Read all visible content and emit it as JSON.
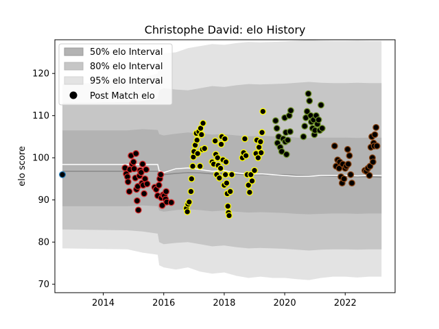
{
  "chart_data": {
    "type": "scatter",
    "title": "Christophe David: elo History",
    "xlabel": "",
    "ylabel": "elo score",
    "xlim": [
      2012.4,
      2023.65
    ],
    "ylim": [
      68,
      128
    ],
    "xticks": [
      2014,
      2016,
      2018,
      2020,
      2022
    ],
    "yticks": [
      70,
      80,
      90,
      100,
      110,
      120
    ],
    "legend": {
      "position": "top-left",
      "entries": [
        {
          "label": "50% elo Interval",
          "swatch": "#b3b3b3"
        },
        {
          "label": "80% elo Interval",
          "swatch": "#c4c4c4"
        },
        {
          "label": "95% elo Interval",
          "swatch": "#e2e2e2"
        },
        {
          "label": "Post Match elo",
          "swatch": "#000000"
        }
      ]
    },
    "colors": {
      "band95": "#e3e3e3",
      "band80": "#c6c6c6",
      "band50": "#b3b3b3",
      "median_line": "#888888",
      "mean_line": "#ffffff",
      "point_fill": "#000000"
    },
    "interval_bands": {
      "x": [
        2012.65,
        2014.8,
        2015.3,
        2015.8,
        2015.85,
        2016.0,
        2016.4,
        2016.8,
        2017.2,
        2017.6,
        2018.0,
        2018.4,
        2018.8,
        2019.2,
        2019.6,
        2020.0,
        2020.4,
        2020.8,
        2021.2,
        2021.6,
        2022.0,
        2022.4,
        2022.8,
        2023.2
      ],
      "median": [
        96.8,
        96.8,
        96.8,
        96.8,
        96.2,
        96.0,
        96.3,
        96.5,
        96.4,
        96.2,
        96.3,
        96.1,
        96.0,
        96.0,
        96.0,
        96.0,
        95.8,
        95.7,
        95.7,
        95.6,
        95.6,
        95.5,
        95.5,
        95.4
      ],
      "mean": [
        98.4,
        98.4,
        98.4,
        98.4,
        96.9,
        96.5,
        97.4,
        97.6,
        97.2,
        96.8,
        97.0,
        96.4,
        96.1,
        96.2,
        96.0,
        95.8,
        95.6,
        95.6,
        95.8,
        95.8,
        95.8,
        95.7,
        95.8,
        95.8
      ],
      "q25": [
        88.5,
        88.5,
        88.7,
        88.5,
        87.5,
        87.2,
        87.6,
        87.8,
        87.6,
        87.3,
        87.5,
        87.2,
        87.0,
        87.1,
        87.0,
        86.9,
        86.7,
        86.6,
        86.7,
        86.8,
        86.8,
        86.7,
        86.8,
        86.8
      ],
      "q75": [
        106.5,
        106.5,
        106.8,
        106.6,
        105.6,
        105.3,
        105.7,
        106.0,
        105.8,
        105.5,
        105.6,
        105.3,
        105.1,
        105.2,
        105.1,
        105.0,
        104.8,
        104.7,
        104.8,
        104.8,
        104.8,
        104.7,
        104.8,
        104.8
      ],
      "q10": [
        83.0,
        82.8,
        82.5,
        82.0,
        80.0,
        79.5,
        79.8,
        80.0,
        79.5,
        79.0,
        79.2,
        78.8,
        78.5,
        78.6,
        78.5,
        78.4,
        78.2,
        78.0,
        78.2,
        78.3,
        78.3,
        78.2,
        78.3,
        78.3
      ],
      "q90": [
        113.0,
        113.2,
        113.5,
        114.0,
        116.0,
        116.5,
        116.2,
        116.0,
        116.5,
        117.0,
        116.8,
        117.2,
        117.5,
        117.4,
        117.5,
        117.6,
        117.8,
        118.0,
        117.8,
        117.7,
        117.7,
        117.8,
        117.7,
        117.7
      ],
      "q025": [
        78.5,
        78.3,
        77.5,
        77.0,
        74.5,
        74.0,
        73.5,
        74.0,
        73.0,
        72.5,
        72.8,
        72.0,
        71.5,
        71.8,
        71.5,
        71.5,
        71.2,
        71.0,
        71.5,
        71.8,
        71.8,
        71.6,
        71.8,
        71.8
      ],
      "q975": [
        117.5,
        118.0,
        119.0,
        120.0,
        124.5,
        124.8,
        125.0,
        126.0,
        126.5,
        127.0,
        126.8,
        127.2,
        127.5,
        127.4,
        127.5,
        127.6,
        127.8,
        128.0,
        127.8,
        127.7,
        127.7,
        127.8,
        127.7,
        127.7
      ]
    },
    "series": [
      {
        "edge": "#1f77b4",
        "points": [
          [
            2012.65,
            96.0
          ]
        ]
      },
      {
        "edge": "#d62728",
        "points": [
          [
            2014.72,
            97.6
          ],
          [
            2014.76,
            96.2
          ],
          [
            2014.8,
            95.5
          ],
          [
            2014.82,
            94.3
          ],
          [
            2014.86,
            92.0
          ],
          [
            2014.88,
            97.2
          ],
          [
            2014.92,
            100.5
          ],
          [
            2014.96,
            98.5
          ],
          [
            2015.0,
            99.0
          ],
          [
            2015.02,
            97.4
          ],
          [
            2015.06,
            95.2
          ],
          [
            2015.08,
            101.0
          ],
          [
            2015.1,
            92.5
          ],
          [
            2015.12,
            89.8
          ],
          [
            2015.14,
            93.2
          ],
          [
            2015.16,
            87.6
          ],
          [
            2015.2,
            95.7
          ],
          [
            2015.22,
            97.0
          ],
          [
            2015.25,
            96.5
          ],
          [
            2015.28,
            94.0
          ],
          [
            2015.3,
            98.5
          ],
          [
            2015.32,
            93.5
          ],
          [
            2015.35,
            91.5
          ],
          [
            2015.38,
            95.0
          ],
          [
            2015.42,
            97.2
          ],
          [
            2015.45,
            93.8
          ],
          [
            2015.7,
            93.0
          ],
          [
            2015.75,
            92.5
          ],
          [
            2015.8,
            91.0
          ],
          [
            2015.84,
            93.5
          ],
          [
            2015.87,
            95.0
          ],
          [
            2015.9,
            96.0
          ],
          [
            2015.92,
            90.5
          ],
          [
            2015.95,
            88.7
          ],
          [
            2015.98,
            91.2
          ],
          [
            2016.02,
            91.0
          ],
          [
            2016.06,
            90.2
          ],
          [
            2016.08,
            92.0
          ],
          [
            2016.1,
            89.5
          ],
          [
            2016.25,
            89.4
          ]
        ]
      },
      {
        "edge": "#ffff00",
        "points": [
          [
            2016.75,
            88.0
          ],
          [
            2016.78,
            87.2
          ],
          [
            2016.8,
            89.0
          ],
          [
            2016.84,
            89.5
          ],
          [
            2016.9,
            92.0
          ],
          [
            2016.92,
            95.0
          ],
          [
            2016.96,
            98.0
          ],
          [
            2016.98,
            100.2
          ],
          [
            2017.0,
            101.5
          ],
          [
            2017.04,
            103.0
          ],
          [
            2017.08,
            105.8
          ],
          [
            2017.1,
            104.2
          ],
          [
            2017.12,
            101.0
          ],
          [
            2017.16,
            106.2
          ],
          [
            2017.2,
            98.0
          ],
          [
            2017.22,
            107.0
          ],
          [
            2017.25,
            105.5
          ],
          [
            2017.28,
            102.0
          ],
          [
            2017.3,
            108.2
          ],
          [
            2017.35,
            102.2
          ],
          [
            2017.6,
            99.0
          ],
          [
            2017.65,
            98.5
          ],
          [
            2017.7,
            104.0
          ],
          [
            2017.72,
            100.8
          ],
          [
            2017.75,
            96.0
          ],
          [
            2017.78,
            100.0
          ],
          [
            2017.8,
            98.2
          ],
          [
            2017.84,
            95.2
          ],
          [
            2017.88,
            97.5
          ],
          [
            2017.9,
            103.2
          ],
          [
            2017.92,
            105.0
          ],
          [
            2017.96,
            99.5
          ],
          [
            2018.0,
            93.5
          ],
          [
            2018.02,
            104.5
          ],
          [
            2018.04,
            96.0
          ],
          [
            2018.06,
            99.0
          ],
          [
            2018.08,
            94.0
          ],
          [
            2018.1,
            91.5
          ],
          [
            2018.12,
            88.5
          ],
          [
            2018.14,
            87.0
          ],
          [
            2018.16,
            86.3
          ],
          [
            2018.2,
            92.0
          ],
          [
            2018.25,
            96.0
          ],
          [
            2018.6,
            100.0
          ],
          [
            2018.64,
            101.2
          ],
          [
            2018.68,
            104.5
          ],
          [
            2018.72,
            100.5
          ],
          [
            2018.76,
            96.0
          ],
          [
            2018.8,
            93.5
          ],
          [
            2018.84,
            91.8
          ],
          [
            2018.88,
            96.0
          ],
          [
            2018.92,
            94.5
          ],
          [
            2019.0,
            97.0
          ],
          [
            2019.05,
            101.0
          ],
          [
            2019.08,
            104.2
          ],
          [
            2019.12,
            100.0
          ],
          [
            2019.15,
            102.5
          ],
          [
            2019.2,
            103.8
          ],
          [
            2019.22,
            101.2
          ],
          [
            2019.25,
            106.0
          ],
          [
            2019.28,
            111.0
          ]
        ]
      },
      {
        "edge": "#6b8e23",
        "points": [
          [
            2019.7,
            108.8
          ],
          [
            2019.74,
            107.0
          ],
          [
            2019.76,
            103.5
          ],
          [
            2019.8,
            105.0
          ],
          [
            2019.85,
            102.5
          ],
          [
            2019.9,
            101.5
          ],
          [
            2019.95,
            104.5
          ],
          [
            2020.0,
            109.5
          ],
          [
            2020.02,
            103.8
          ],
          [
            2020.04,
            106.0
          ],
          [
            2020.06,
            100.8
          ],
          [
            2020.1,
            104.2
          ],
          [
            2020.15,
            110.0
          ],
          [
            2020.18,
            106.2
          ],
          [
            2020.2,
            111.2
          ],
          [
            2020.62,
            105.0
          ],
          [
            2020.66,
            107.5
          ],
          [
            2020.7,
            109.5
          ],
          [
            2020.74,
            111.0
          ],
          [
            2020.78,
            115.2
          ],
          [
            2020.82,
            113.5
          ],
          [
            2020.86,
            110.0
          ],
          [
            2020.88,
            108.5
          ],
          [
            2020.92,
            107.0
          ],
          [
            2020.95,
            109.0
          ],
          [
            2020.98,
            105.5
          ],
          [
            2021.0,
            106.5
          ],
          [
            2021.04,
            110.0
          ],
          [
            2021.08,
            108.0
          ],
          [
            2021.12,
            109.0
          ],
          [
            2021.16,
            106.5
          ],
          [
            2021.2,
            112.5
          ],
          [
            2021.24,
            107.0
          ]
        ]
      },
      {
        "edge": "#8b4513",
        "points": [
          [
            2021.65,
            102.8
          ],
          [
            2021.7,
            98.0
          ],
          [
            2021.75,
            99.5
          ],
          [
            2021.8,
            97.5
          ],
          [
            2021.82,
            99.0
          ],
          [
            2021.86,
            95.5
          ],
          [
            2021.9,
            94.0
          ],
          [
            2021.92,
            98.5
          ],
          [
            2021.96,
            95.0
          ],
          [
            2022.0,
            97.5
          ],
          [
            2022.04,
            98.0
          ],
          [
            2022.08,
            102.0
          ],
          [
            2022.1,
            98.5
          ],
          [
            2022.14,
            100.5
          ],
          [
            2022.18,
            96.0
          ],
          [
            2022.22,
            94.0
          ],
          [
            2022.65,
            97.0
          ],
          [
            2022.7,
            96.8
          ],
          [
            2022.75,
            97.5
          ],
          [
            2022.8,
            95.8
          ],
          [
            2022.82,
            98.0
          ],
          [
            2022.85,
            102.5
          ],
          [
            2022.88,
            105.0
          ],
          [
            2022.9,
            100.0
          ],
          [
            2022.92,
            99.0
          ],
          [
            2022.94,
            103.5
          ],
          [
            2022.96,
            102.8
          ],
          [
            2022.98,
            105.5
          ],
          [
            2023.02,
            107.2
          ],
          [
            2023.05,
            102.8
          ]
        ]
      }
    ]
  }
}
